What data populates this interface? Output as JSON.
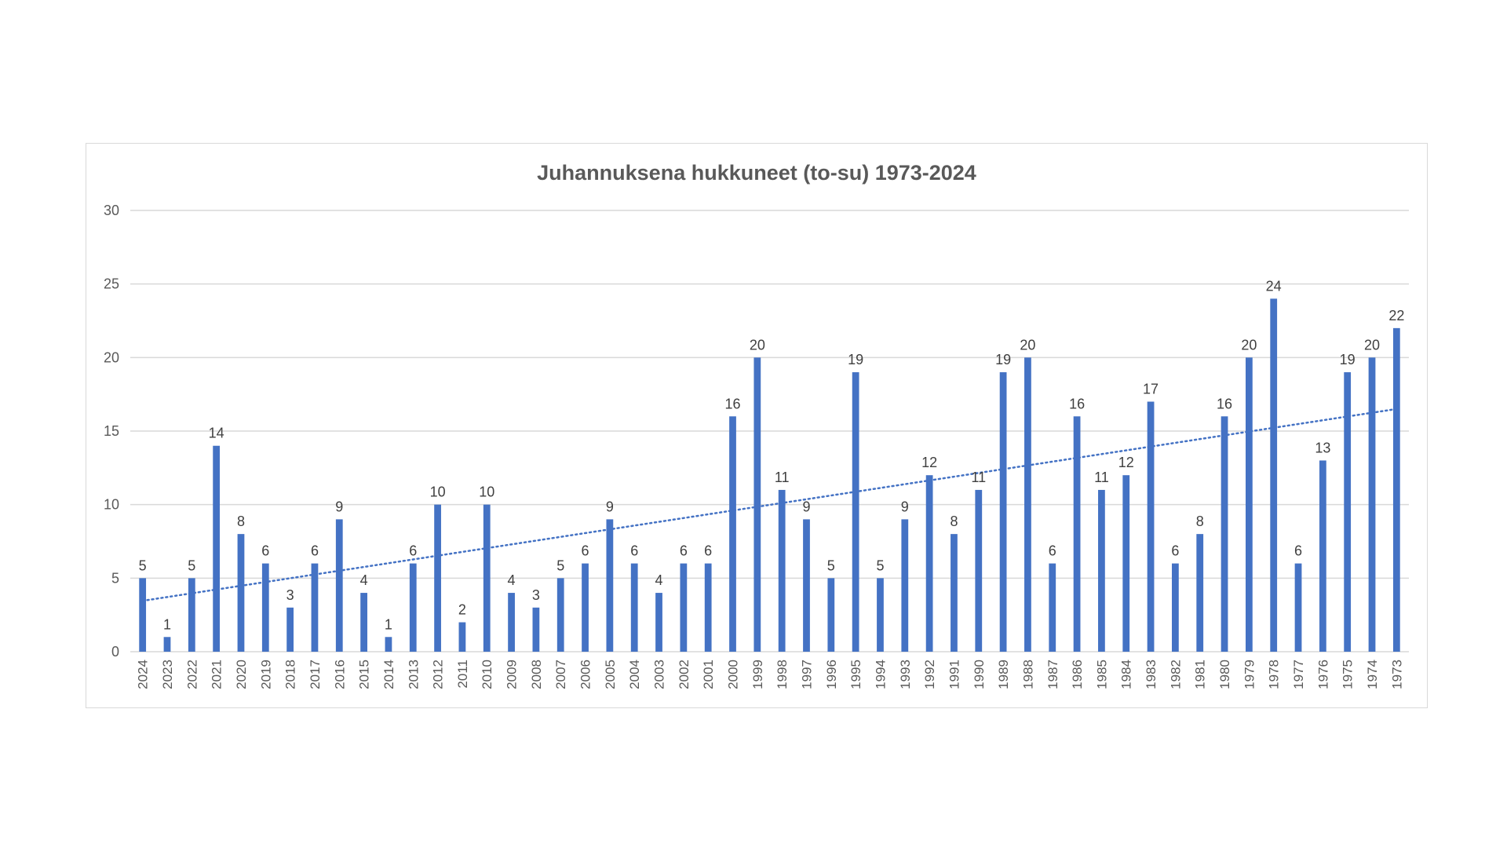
{
  "chart_data": {
    "type": "bar",
    "title": "Juhannuksena hukkuneet (to-su) 1973-2024",
    "xlabel": "",
    "ylabel": "",
    "ylim": [
      0,
      30
    ],
    "yticks": [
      0,
      5,
      10,
      15,
      20,
      25,
      30
    ],
    "grid": true,
    "legend": "none",
    "bar_color": "#4472C4",
    "trendline": {
      "type": "linear",
      "style": "dotted",
      "color": "#4472C4"
    },
    "categories": [
      "2024",
      "2023",
      "2022",
      "2021",
      "2020",
      "2019",
      "2018",
      "2017",
      "2016",
      "2015",
      "2014",
      "2013",
      "2012",
      "2011",
      "2010",
      "2009",
      "2008",
      "2007",
      "2006",
      "2005",
      "2004",
      "2003",
      "2002",
      "2001",
      "2000",
      "1999",
      "1998",
      "1997",
      "1996",
      "1995",
      "1994",
      "1993",
      "1992",
      "1991",
      "1990",
      "1989",
      "1988",
      "1987",
      "1986",
      "1985",
      "1984",
      "1983",
      "1982",
      "1981",
      "1980",
      "1979",
      "1978",
      "1977",
      "1976",
      "1975",
      "1974",
      "1973"
    ],
    "values": [
      5,
      1,
      5,
      14,
      8,
      6,
      3,
      6,
      9,
      4,
      1,
      6,
      10,
      2,
      10,
      4,
      3,
      5,
      6,
      9,
      6,
      4,
      6,
      6,
      16,
      20,
      11,
      9,
      5,
      19,
      5,
      9,
      12,
      8,
      11,
      19,
      20,
      6,
      16,
      11,
      12,
      17,
      6,
      8,
      16,
      20,
      24,
      6,
      13,
      19,
      20,
      22
    ]
  }
}
